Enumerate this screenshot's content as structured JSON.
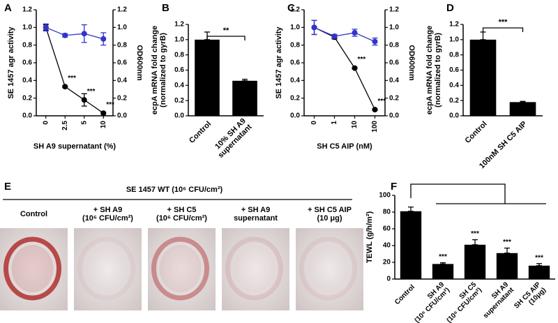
{
  "chart_data": [
    {
      "type": "line",
      "panel_label": "A",
      "categories": [
        "0",
        "2.5",
        "5",
        "10"
      ],
      "x_label": "SH A9 supernatant (%)",
      "y_label": "SE 1457 agr activity",
      "y2_label": "OD600nm",
      "ylim": [
        0,
        1.2
      ],
      "yticks": [
        {
          "value": 0,
          "label": "0.0"
        },
        0.2,
        0.4,
        0.6,
        0.8,
        {
          "value": 1,
          "label": "1.0"
        },
        1.2
      ],
      "y2lim": [
        0,
        1.2
      ],
      "y2ticks": [
        {
          "value": 0,
          "label": "0.0"
        },
        0.2,
        0.4,
        0.6,
        0.8,
        {
          "value": 1,
          "label": "1.0"
        },
        1.2
      ],
      "series": [
        {
          "color": "#000000",
          "values": [
            1.0,
            0.33,
            0.18,
            0.03
          ],
          "errors": [
            0.03,
            0.01,
            0.07,
            0.01
          ],
          "significance": [
            null,
            "***",
            "***",
            "***"
          ]
        },
        {
          "color": "#3333cc",
          "axis": "y2",
          "values": [
            1.0,
            0.91,
            0.93,
            0.87
          ],
          "errors": [
            0.04,
            0.02,
            0.1,
            0.07
          ]
        }
      ]
    },
    {
      "type": "bar",
      "panel_label": "B",
      "categories": [
        "Control",
        "10% SH A9\nsupernatant"
      ],
      "y_label": "ecpA mRNA fold change\n(normalized to gyrB)",
      "ylim": [
        0,
        1.2
      ],
      "yticks": [
        {
          "value": 0,
          "label": "0.0"
        },
        0.2,
        0.4,
        0.6,
        0.8,
        {
          "value": 1,
          "label": "1.0"
        },
        1.2
      ],
      "color": "#000000",
      "values": [
        1.0,
        0.46
      ],
      "errors": [
        0.1,
        0.02
      ],
      "significance": "**"
    },
    {
      "type": "line",
      "panel_label": "C",
      "categories": [
        "0",
        "1",
        "10",
        "100"
      ],
      "x_label": "SH C5 AIP (nM)",
      "y_label": "SE 1457 agr activity",
      "y2_label": "OD600nm",
      "ylim": [
        0,
        1.2
      ],
      "yticks": [
        {
          "value": 0,
          "label": "0.0"
        },
        0.2,
        0.4,
        0.6,
        0.8,
        {
          "value": 1,
          "label": "1.0"
        },
        1.2
      ],
      "y2lim": [
        0,
        1.2
      ],
      "y2ticks": [
        {
          "value": 0,
          "label": "0.0"
        },
        0.2,
        0.4,
        0.6,
        0.8,
        {
          "value": 1,
          "label": "1.0"
        },
        1.2
      ],
      "series": [
        {
          "color": "#000000",
          "values": [
            1.0,
            0.89,
            0.54,
            0.07
          ],
          "errors": [
            0.08,
            0.02,
            0.01,
            0.01
          ],
          "significance": [
            null,
            null,
            "***",
            "***"
          ]
        },
        {
          "color": "#3333cc",
          "axis": "y2",
          "values": [
            1.0,
            0.9,
            0.94,
            0.84
          ],
          "errors": [
            0.08,
            0.02,
            0.04,
            0.04
          ]
        }
      ]
    },
    {
      "type": "bar",
      "panel_label": "D",
      "categories": [
        "Control",
        "100nM SH C5 AIP"
      ],
      "y_label": "ecpA mRNA fold change\n(normalized to gyrB)",
      "ylim": [
        0,
        1.2
      ],
      "yticks": [
        {
          "value": 0,
          "label": "0.0"
        },
        0.2,
        0.4,
        0.6,
        0.8,
        {
          "value": 1,
          "label": "1.0"
        },
        1.2
      ],
      "color": "#000000",
      "values": [
        1.0,
        0.18
      ],
      "errors": [
        0.1,
        0.01
      ],
      "significance": "***"
    },
    {
      "type": "image",
      "panel_label": "E",
      "title": "SE 1457 WT (10⁶ CFU/cm²)",
      "images": [
        "Control",
        "+ SH A9\n(10⁶ CFU/cm²)",
        "+ SH C5\n(10⁶ CFU/cm²)",
        "+ SH A9\nsupernatant",
        "+ SH C5 AIP\n(10 μg)"
      ]
    },
    {
      "type": "bar",
      "panel_label": "F",
      "categories": [
        "Control",
        "SH A9\n(10⁶ CFU/cm²)",
        "SH C5\n(10⁶ CFU/cm²)",
        "SH A9\nsupernatant",
        "SH C5 AIP\n(10μg)"
      ],
      "y_label": "TEWL (g/h/m²)",
      "ylim": [
        0,
        100
      ],
      "yticks": [
        0,
        20,
        40,
        60,
        80,
        100
      ],
      "color": "#000000",
      "values": [
        81,
        18,
        41,
        31,
        16
      ],
      "errors": [
        5,
        1.5,
        6,
        6,
        2.5
      ],
      "significance": [
        null,
        "***",
        "***",
        "***",
        "***"
      ]
    }
  ]
}
